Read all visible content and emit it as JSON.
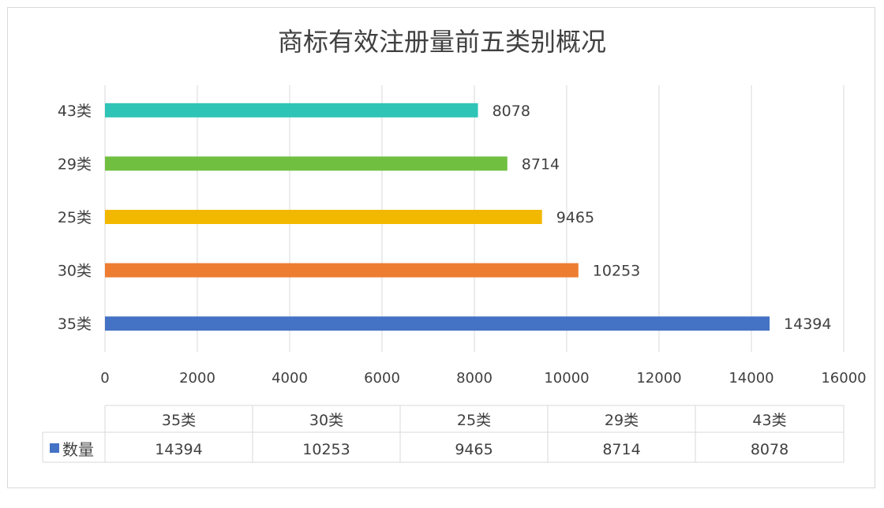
{
  "chart_data": {
    "type": "bar",
    "orientation": "horizontal",
    "title": "商标有效注册量前五类别概况",
    "categories": [
      "35类",
      "30类",
      "25类",
      "29类",
      "43类"
    ],
    "series": [
      {
        "name": "数量",
        "values": [
          14394,
          10253,
          9465,
          8714,
          8078
        ]
      }
    ],
    "bar_colors": [
      "#4472c4",
      "#ed7d31",
      "#f2b800",
      "#70bf41",
      "#2ec4b6"
    ],
    "legend_color": "#4472c4",
    "xlim": [
      0,
      16000
    ],
    "x_ticks": [
      "0",
      "2000",
      "4000",
      "6000",
      "8000",
      "10000",
      "12000",
      "14000",
      "16000"
    ],
    "grid": true,
    "data_labels": true,
    "data_table": true,
    "xlabel": "",
    "ylabel": ""
  }
}
